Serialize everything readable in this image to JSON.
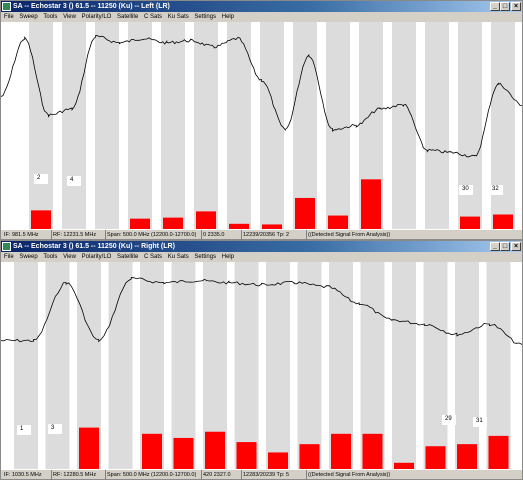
{
  "menu": [
    "File",
    "Sweep",
    "Tools",
    "View",
    "Polarity/LO",
    "Satellite",
    "C Sats",
    "Ku Sats",
    "Settings",
    "Help"
  ],
  "windows": [
    {
      "title": "SA -- Echostar 3 () 61.5 -- 11250 (Ku) -- Left (LR)",
      "status": [
        "IF: 981.5 MHz",
        "RF: 12231.5 MHz",
        "Span: 500.0 MHz (12200.0-12700.0)",
        "0 2335.0",
        "12239/20356  Tp: 2",
        "((Detected Signal From Analysis))"
      ],
      "labels": [
        "2",
        "4",
        "30",
        "32"
      ],
      "bar_levels": [
        0.09,
        0,
        0,
        0.05,
        0.055,
        0.085,
        0.025,
        0.022,
        0.15,
        0.065,
        0.24,
        0,
        0,
        0.06,
        0.07
      ],
      "trace": [
        0.36,
        0.08,
        0.45,
        0.42,
        0.07,
        0.1,
        0.08,
        0.1,
        0.09,
        0.12,
        0.08,
        0.28,
        0.52,
        0.16,
        0.52,
        0.5,
        0.42,
        0.4,
        0.62,
        0.63,
        0.65,
        0.3,
        0.4
      ]
    },
    {
      "title": "SA -- Echostar 3 () 61.5 -- 11250 (Ku) -- Right (LR)",
      "status": [
        "IF: 1030.5 MHz",
        "RF: 12280.5 MHz",
        "Span: 500.0 MHz (12200.0-12700.0)",
        "420 2327.0",
        "12283/20239  Tp: 5",
        "((Detected Signal From Analysis))"
      ],
      "labels": [
        "1",
        "3",
        "29",
        "31"
      ],
      "bar_levels": [
        0,
        0.0,
        0.2,
        0,
        0.17,
        0.15,
        0.18,
        0.13,
        0.08,
        0.12,
        0.17,
        0.17,
        0.03,
        0.11,
        0.12,
        0.16
      ],
      "trace": [
        0.38,
        0.38,
        0.1,
        0.38,
        0.08,
        0.1,
        0.09,
        0.1,
        0.11,
        0.1,
        0.12,
        0.2,
        0.28,
        0.3,
        0.35,
        0.3,
        0.4
      ]
    }
  ]
}
